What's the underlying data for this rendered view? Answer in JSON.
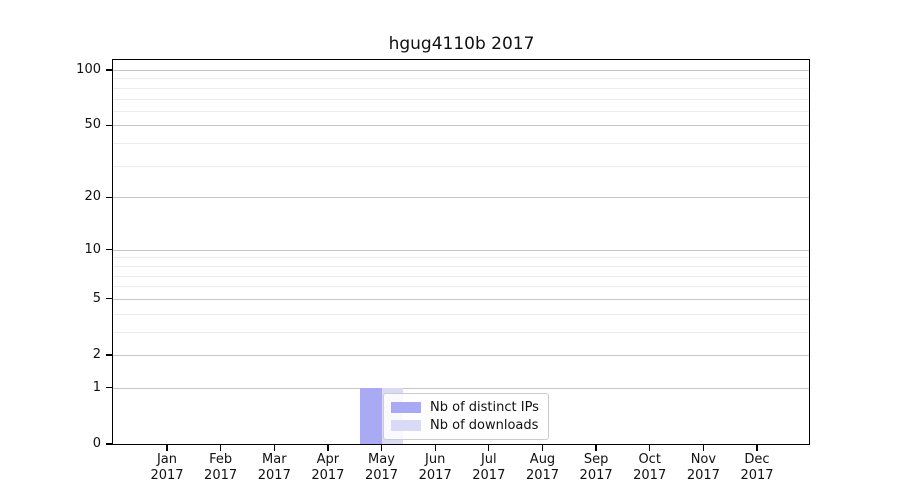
{
  "page": {
    "background_color": "#ffffff"
  },
  "chart_data": {
    "type": "bar",
    "title": "hgug4110b 2017",
    "xlabel": "",
    "ylabel": "",
    "x_year": "2017",
    "categories": [
      "Jan",
      "Feb",
      "Mar",
      "Apr",
      "May",
      "Jun",
      "Jul",
      "Aug",
      "Sep",
      "Oct",
      "Nov",
      "Dec"
    ],
    "series": [
      {
        "name": "Nb of distinct IPs",
        "color": "#a9aaf3",
        "values": [
          0,
          0,
          0,
          0,
          1,
          0,
          0,
          0,
          0,
          0,
          0,
          0
        ]
      },
      {
        "name": "Nb of downloads",
        "color": "#d9dbf6",
        "values": [
          0,
          0,
          0,
          0,
          1,
          0,
          0,
          0,
          0,
          0,
          0,
          0
        ]
      }
    ],
    "yscale": "log1p",
    "ylim": [
      0,
      114
    ],
    "y_major_ticks": [
      0,
      1,
      2,
      5,
      10,
      20,
      50,
      100
    ],
    "y_minor_gridlines": [
      3,
      4,
      6,
      7,
      8,
      9,
      30,
      40,
      60,
      70,
      80,
      90
    ],
    "grid": "horizontal",
    "legend_position": "lower-center-inside-plot",
    "colors": {
      "major_grid": "#c6c6c6",
      "minor_grid": "#ebebeb",
      "axis": "#000000",
      "text": "#111111",
      "legend_border": "#cccccc"
    }
  }
}
